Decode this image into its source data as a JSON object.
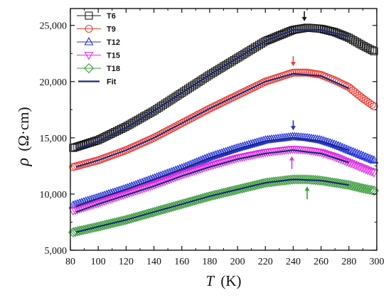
{
  "chart_data": {
    "type": "scatter",
    "xlabel": "T (K)",
    "xlabel_italic": "T",
    "xlabel_unit": "(K)",
    "ylabel": "ρ (Ω·cm)",
    "ylabel_italic": "ρ",
    "ylabel_unit": "(Ω·cm)",
    "xlim": [
      80,
      300
    ],
    "ylim": [
      5000,
      26500
    ],
    "xticks": [
      80,
      100,
      120,
      140,
      160,
      180,
      200,
      220,
      240,
      260,
      280,
      300
    ],
    "yticks": [
      5000,
      10000,
      15000,
      20000,
      25000
    ],
    "ytick_labels": [
      "5,000",
      "10,000",
      "15,000",
      "20,000",
      "25,000"
    ],
    "grid": false,
    "legend_position": "top-left",
    "series": [
      {
        "name": "T6",
        "marker": "square",
        "color": "#1a1a1a",
        "x": [
          82,
          100,
          120,
          140,
          160,
          180,
          200,
          220,
          240,
          250,
          260,
          270,
          280,
          290,
          298
        ],
        "y": [
          14100,
          14800,
          16000,
          17400,
          19000,
          20600,
          22100,
          23600,
          24600,
          24800,
          24700,
          24400,
          23900,
          23200,
          22700
        ],
        "arrow_x": 248
      },
      {
        "name": "T9",
        "marker": "circle",
        "color": "#e8413a",
        "x": [
          82,
          100,
          120,
          140,
          160,
          180,
          200,
          220,
          240,
          250,
          260,
          270,
          280,
          290,
          298
        ],
        "y": [
          12400,
          13000,
          13900,
          15000,
          16300,
          17600,
          18800,
          20000,
          20800,
          20800,
          20600,
          20100,
          19500,
          18500,
          17800
        ],
        "arrow_x": 240
      },
      {
        "name": "T12",
        "marker": "triangle-up",
        "color": "#2030d8",
        "x": [
          82,
          100,
          120,
          140,
          160,
          180,
          200,
          220,
          240,
          250,
          260,
          270,
          280,
          290,
          298
        ],
        "y": [
          9000,
          9700,
          10500,
          11400,
          12300,
          13300,
          14100,
          14800,
          15100,
          15000,
          14800,
          14400,
          13900,
          13400,
          13000
        ],
        "arrow_x": 240
      },
      {
        "name": "T15",
        "marker": "triangle-down",
        "color": "#e030e0",
        "x": [
          82,
          100,
          120,
          140,
          160,
          180,
          200,
          220,
          240,
          250,
          260,
          270,
          280,
          290,
          298
        ],
        "y": [
          8500,
          9200,
          10000,
          10800,
          11700,
          12500,
          13200,
          13700,
          14000,
          13900,
          13700,
          13300,
          12800,
          12300,
          11900
        ],
        "arrow_x": 239
      },
      {
        "name": "T18",
        "marker": "diamond",
        "color": "#3a9c3a",
        "x": [
          82,
          100,
          120,
          140,
          160,
          180,
          200,
          220,
          240,
          250,
          260,
          270,
          280,
          290,
          298
        ],
        "y": [
          6600,
          7100,
          7700,
          8400,
          9100,
          9800,
          10400,
          11000,
          11300,
          11300,
          11200,
          11000,
          10800,
          10500,
          10300
        ],
        "arrow_x": 250
      }
    ],
    "fit": {
      "name": "Fit",
      "color": "#1c2a78",
      "curves": [
        {
          "x": [
            84,
            100,
            120,
            140,
            160,
            180,
            200,
            220,
            240,
            260,
            280
          ],
          "y": [
            14000,
            14700,
            15900,
            17400,
            19000,
            20600,
            22100,
            23600,
            24600,
            24600,
            24000
          ]
        },
        {
          "x": [
            84,
            100,
            120,
            140,
            160,
            180,
            200,
            220,
            240,
            260,
            280
          ],
          "y": [
            12400,
            13000,
            13900,
            15000,
            16300,
            17600,
            18800,
            20000,
            20700,
            20500,
            19400
          ]
        },
        {
          "x": [
            84,
            100,
            120,
            140,
            160,
            180,
            200,
            220,
            240,
            260,
            280
          ],
          "y": [
            8900,
            9600,
            10400,
            11300,
            12200,
            13200,
            14000,
            14700,
            15000,
            14700,
            13900
          ]
        },
        {
          "x": [
            84,
            100,
            120,
            140,
            160,
            180,
            200,
            220,
            240,
            260,
            280
          ],
          "y": [
            8400,
            9100,
            9900,
            10700,
            11600,
            12400,
            13100,
            13600,
            13900,
            13600,
            12800
          ]
        },
        {
          "x": [
            84,
            100,
            120,
            140,
            160,
            180,
            200,
            220,
            240,
            260,
            280
          ],
          "y": [
            6600,
            7100,
            7700,
            8400,
            9100,
            9800,
            10400,
            11000,
            11300,
            11200,
            10800
          ]
        }
      ]
    }
  }
}
